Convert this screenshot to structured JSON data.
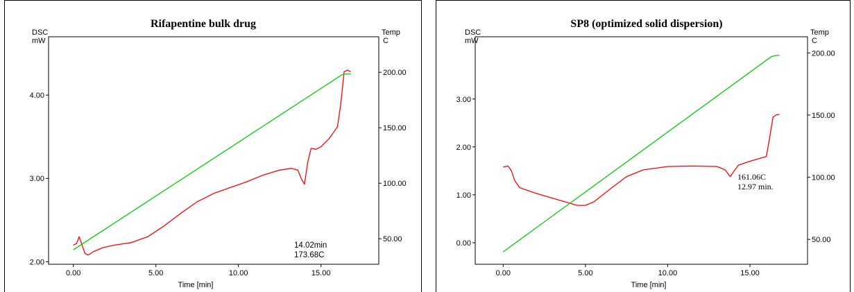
{
  "chart_data": [
    {
      "type": "line",
      "title": "Rifapentine bulk drug",
      "xlabel": "Time  [min]",
      "ylabel_left": [
        "DSC",
        "mW"
      ],
      "ylabel_right": [
        "Temp",
        "C"
      ],
      "xlim": [
        -1.5,
        18.5
      ],
      "ylim_left": [
        1.97,
        4.7
      ],
      "ylim_right": [
        27,
        232
      ],
      "x_ticks": [
        {
          "value": 0,
          "label": "0.00"
        },
        {
          "value": 5,
          "label": "5.00"
        },
        {
          "value": 10,
          "label": "10.00"
        },
        {
          "value": 15,
          "label": "15.00"
        }
      ],
      "y_left_ticks": [
        {
          "value": 2,
          "label": "2.00"
        },
        {
          "value": 3,
          "label": "3.00"
        },
        {
          "value": 4,
          "label": "4.00"
        }
      ],
      "y_right_ticks": [
        {
          "value": 50,
          "label": "50.00"
        },
        {
          "value": 100,
          "label": "100.00"
        },
        {
          "value": 150,
          "label": "150.00"
        },
        {
          "value": 200,
          "label": "200.00"
        }
      ],
      "series": [
        {
          "axis": "left",
          "color": "#ff0000",
          "x": [
            0,
            0.2,
            0.35,
            0.5,
            0.7,
            0.9,
            1.2,
            1.8,
            2.5,
            3.5,
            4.5,
            5.5,
            6.5,
            7.5,
            8.5,
            9.5,
            10.5,
            11.5,
            12.5,
            13.2,
            13.6,
            13.8,
            14.0,
            14.2,
            14.4,
            14.7,
            15.0,
            15.5,
            16.0,
            16.2,
            16.4,
            16.6,
            16.8
          ],
          "y": [
            2.2,
            2.22,
            2.3,
            2.22,
            2.1,
            2.08,
            2.12,
            2.17,
            2.2,
            2.23,
            2.3,
            2.43,
            2.58,
            2.72,
            2.82,
            2.89,
            2.96,
            3.04,
            3.1,
            3.12,
            3.1,
            3.0,
            2.93,
            3.2,
            3.36,
            3.35,
            3.38,
            3.48,
            3.62,
            3.9,
            4.28,
            4.3,
            4.28
          ]
        },
        {
          "axis": "right",
          "color": "#00cc00",
          "x": [
            0,
            16.3,
            16.6,
            16.8
          ],
          "y": [
            40,
            198,
            198.5,
            198.5
          ]
        }
      ],
      "annotations": [
        {
          "text": "14.02min",
          "x": 14.02,
          "y": 2.93
        },
        {
          "text": "173.68C",
          "x": 14.02,
          "y": 2.93
        }
      ]
    },
    {
      "type": "line",
      "title": "SP8 (optimized solid dispersion)",
      "xlabel": "Time  [min]",
      "ylabel_left": [
        "DSC",
        "mW"
      ],
      "ylabel_right": [
        "Temp",
        "C"
      ],
      "xlim": [
        -1.7,
        18.5
      ],
      "ylim_left": [
        -0.45,
        4.3
      ],
      "ylim_right": [
        30,
        213
      ],
      "x_ticks": [
        {
          "value": 0,
          "label": "0.00"
        },
        {
          "value": 5,
          "label": "5.00"
        },
        {
          "value": 10,
          "label": "10.00"
        },
        {
          "value": 15,
          "label": "15.00"
        }
      ],
      "y_left_ticks": [
        {
          "value": 0,
          "label": "0.00"
        },
        {
          "value": 1,
          "label": "1.00"
        },
        {
          "value": 2,
          "label": "2.00"
        },
        {
          "value": 3,
          "label": "3.00"
        }
      ],
      "y_right_ticks": [
        {
          "value": 50,
          "label": "50.00"
        },
        {
          "value": 100,
          "label": "100.00"
        },
        {
          "value": 150,
          "label": "150.00"
        },
        {
          "value": 200,
          "label": "200.00"
        }
      ],
      "series": [
        {
          "axis": "left",
          "color": "#ff0000",
          "x": [
            0,
            0.3,
            0.5,
            0.7,
            1.0,
            2.0,
            3.0,
            4.0,
            4.5,
            5.0,
            5.5,
            6.5,
            7.5,
            8.5,
            10.0,
            11.5,
            13.0,
            13.5,
            13.8,
            14.0,
            14.3,
            15.0,
            16.0,
            16.2,
            16.4,
            16.6,
            16.8
          ],
          "y": [
            1.58,
            1.6,
            1.5,
            1.3,
            1.15,
            1.03,
            0.93,
            0.83,
            0.78,
            0.78,
            0.85,
            1.12,
            1.38,
            1.52,
            1.59,
            1.6,
            1.59,
            1.52,
            1.38,
            1.48,
            1.62,
            1.7,
            1.8,
            2.2,
            2.62,
            2.67,
            2.68
          ]
        },
        {
          "axis": "right",
          "color": "#00cc00",
          "x": [
            0,
            16.3,
            16.6,
            16.8
          ],
          "y": [
            40,
            197,
            198,
            198
          ]
        }
      ],
      "annotations": [
        {
          "text": "161.06C",
          "x": 13.9,
          "y": 1.38
        },
        {
          "text": "12.97 min.",
          "x": 13.9,
          "y": 1.38
        }
      ]
    }
  ]
}
